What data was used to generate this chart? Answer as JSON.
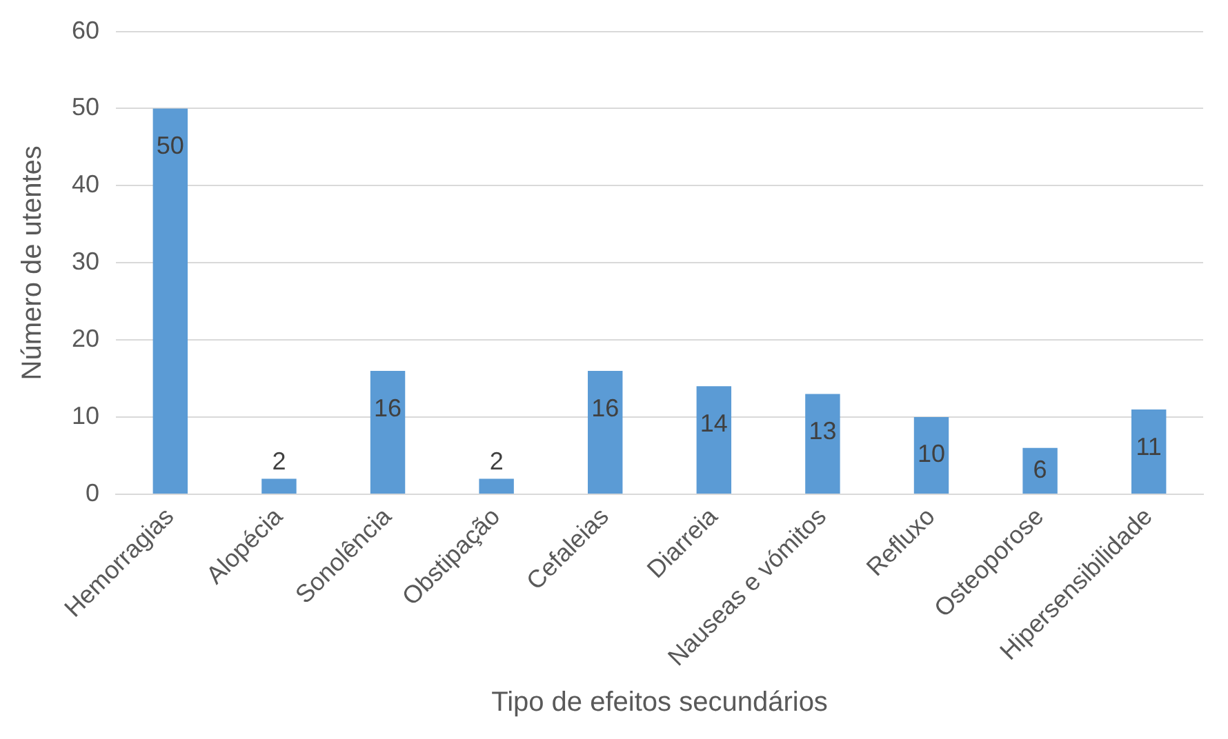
{
  "chart_data": {
    "type": "bar",
    "xlabel": "Tipo de efeitos secundários",
    "ylabel": "Número de utentes",
    "categories": [
      "Hemorragias",
      "Alopécia",
      "Sonolência",
      "Obstipação",
      "Cefaleias",
      "Diarreia",
      "Nauseas e vómitos",
      "Refluxo",
      "Osteoporose",
      "Hipersensibilidade"
    ],
    "values": [
      50,
      2,
      16,
      2,
      16,
      14,
      13,
      10,
      6,
      11
    ],
    "color": "#5b9bd5",
    "ylim": [
      0,
      60
    ],
    "yticks": [
      0,
      10,
      20,
      30,
      40,
      50,
      60
    ],
    "grid": "y",
    "data_labels": true
  }
}
